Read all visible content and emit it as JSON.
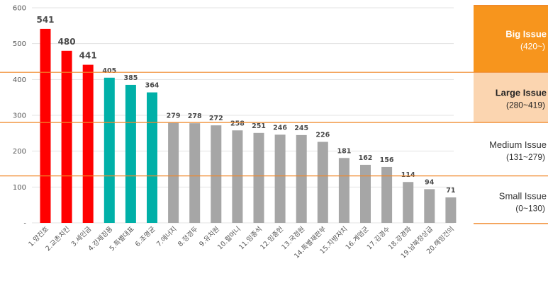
{
  "chart_data": {
    "type": "bar",
    "title": "",
    "xlabel": "",
    "ylabel": "",
    "ylim": [
      0,
      600
    ],
    "yticks": [
      "-",
      "100",
      "200",
      "300",
      "400",
      "500",
      "600"
    ],
    "grid": true,
    "categories": [
      "1.양진호",
      "2.교촌치킨",
      "3.세인금",
      "4.강제징용",
      "5.특별대표",
      "6.조명균",
      "7.에너지",
      "8.정경두",
      "9.유치원",
      "10.할머니",
      "11.임종석",
      "12.임종헌",
      "13.국정원",
      "14.특별재판부",
      "15.지방자치",
      "16.계엄군",
      "17.김경수",
      "18.강경화",
      "19.남북정상급",
      "20.해임건의"
    ],
    "values": [
      541,
      480,
      441,
      405,
      385,
      364,
      279,
      278,
      272,
      258,
      251,
      246,
      245,
      226,
      181,
      162,
      156,
      114,
      94,
      71
    ],
    "value_labels": [
      "541",
      "480",
      "441",
      "405",
      "385",
      "364",
      "279",
      "278",
      "272",
      "258",
      "251",
      "246",
      "245",
      "226",
      "181",
      "162",
      "156",
      "114",
      "94",
      "71"
    ],
    "colors": [
      "#ff0000",
      "#ff0000",
      "#ff0000",
      "#00b0a8",
      "#00b0a8",
      "#00b0a8",
      "#a6a6a6",
      "#a6a6a6",
      "#a6a6a6",
      "#a6a6a6",
      "#a6a6a6",
      "#a6a6a6",
      "#a6a6a6",
      "#a6a6a6",
      "#a6a6a6",
      "#a6a6a6",
      "#a6a6a6",
      "#a6a6a6",
      "#a6a6a6",
      "#a6a6a6"
    ],
    "thresholds": [
      420,
      280,
      131
    ],
    "threshold_color": "#f0882a",
    "bands": [
      {
        "title": "Big Issue",
        "range": "(420~)",
        "from": 420,
        "to": 600,
        "fill": "#f7951d",
        "text_color": "#ffffff"
      },
      {
        "title": "Large Issue",
        "range": "(280~419)",
        "from": 280,
        "to": 420,
        "fill": "#fbd5b0",
        "text_color": "#222222"
      },
      {
        "title": "Medium Issue",
        "range": "(131~279)",
        "from": 131,
        "to": 280,
        "fill": "#ffffff",
        "text_color": "#333333"
      },
      {
        "title": "Small Issue",
        "range": "(0~130)",
        "from": 0,
        "to": 131,
        "fill": "#ffffff",
        "text_color": "#333333"
      }
    ]
  }
}
